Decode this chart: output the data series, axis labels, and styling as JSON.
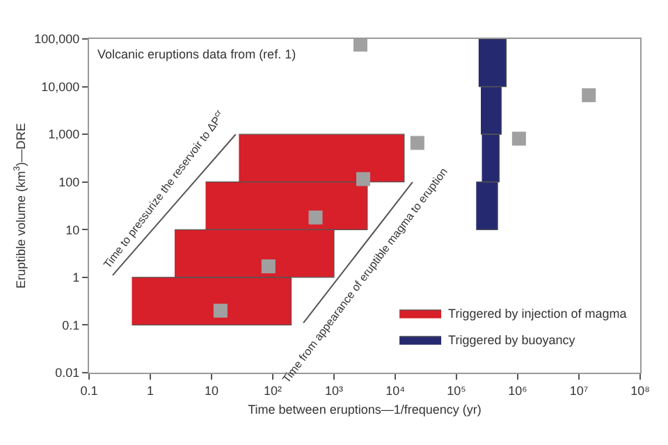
{
  "chart_data": {
    "type": "scatter",
    "xlabel": "Time between eruptions—1/frequency (yr)",
    "ylabel": "Eruptible volume (km$^{3}$)—DRE",
    "log": "xy",
    "legend": "bottom right",
    "xlim": [
      0.1,
      100000000
    ],
    "ylim": [
      0.01,
      100000
    ],
    "xticks": [
      0.1,
      1,
      10,
      {
        "value": 100,
        "label": "10²"
      },
      {
        "value": 1000,
        "label": "10³"
      },
      {
        "value": 10000,
        "label": "10⁴"
      },
      {
        "value": 100000,
        "label": "10⁵"
      },
      {
        "value": 1000000,
        "label": "10⁶"
      },
      {
        "value": 10000000,
        "label": "10⁷"
      },
      {
        "value": 100000000,
        "label": "10⁸"
      }
    ],
    "yticks": [
      0.01,
      0.1,
      1,
      10,
      100,
      {
        "value": 1000,
        "label": "1,000"
      },
      {
        "value": 10000,
        "label": "10,000"
      },
      {
        "value": 100000,
        "label": "100,000"
      }
    ],
    "series": [
      {
        "type": "area",
        "name": "Triggered by injection of magma",
        "color": "#d7202a",
        "x": [
          0.5,
          200,
          200,
          0.5,
          null,
          2.5,
          1000,
          1000,
          2.5,
          null,
          8,
          3500,
          3500,
          8,
          null,
          28,
          14000,
          14000,
          28
        ],
        "values": [
          0.1,
          0.1,
          1,
          1,
          null,
          1,
          1,
          10,
          10,
          null,
          10,
          10,
          100,
          100,
          null,
          100,
          100,
          1000,
          1000
        ]
      },
      {
        "type": "area",
        "name": "Triggered by buoyancy",
        "color": "#252a70",
        "x": [
          210000,
          470000,
          470000,
          210000,
          null,
          260000,
          500000,
          500000,
          260000,
          null,
          250000,
          540000,
          540000,
          250000,
          null,
          230000,
          650000,
          650000,
          230000
        ],
        "values": [
          10,
          10,
          100,
          100,
          null,
          100,
          100,
          1000,
          1000,
          null,
          1000,
          1000,
          10000,
          10000,
          null,
          10000,
          10000,
          100000,
          100000
        ]
      },
      {
        "color": "#a0a0a0",
        "marker": "square",
        "x": [
          2700,
          23000,
          3000,
          1050000,
          14500000,
          500,
          85,
          14
        ],
        "values": [
          76000,
          660,
          115,
          810,
          6600,
          18,
          1.7,
          0.2
        ]
      }
    ],
    "annotations": [
      "Volcanic eruptions data from (ref. 1)",
      "Time to pressurize the reservoir to ΔP$^{cr}$",
      "Time from appearance of eruptible magma to eruption"
    ]
  }
}
